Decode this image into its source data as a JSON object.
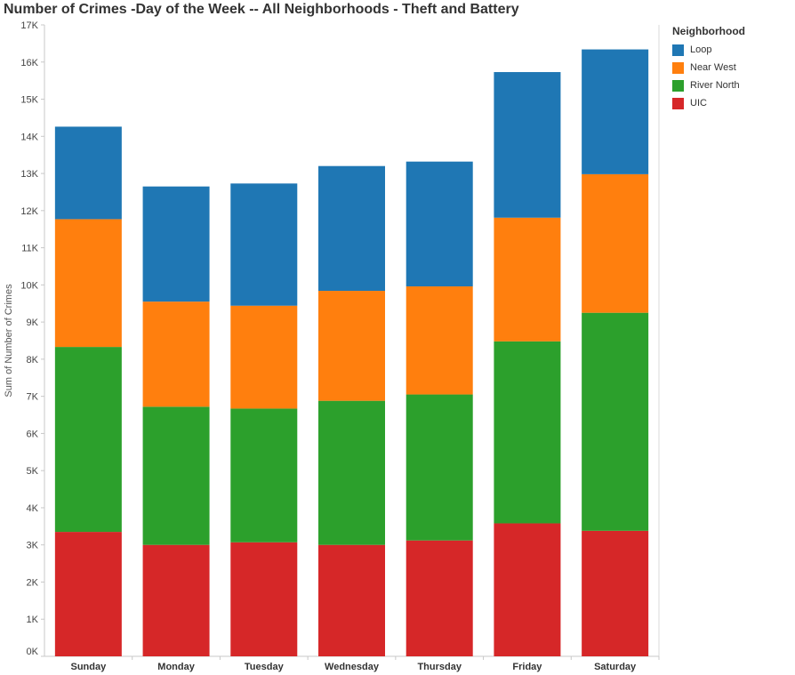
{
  "chart_data": {
    "type": "bar",
    "stacked": true,
    "title": "Number of Crimes -Day of the Week -- All Neighborhoods - Theft and Battery",
    "xlabel": "",
    "ylabel": "Sum of Number of Crimes",
    "ylim": [
      0,
      17000
    ],
    "ytick_labels": [
      "0K",
      "1K",
      "2K",
      "3K",
      "4K",
      "5K",
      "6K",
      "7K",
      "8K",
      "9K",
      "10K",
      "11K",
      "12K",
      "13K",
      "14K",
      "15K",
      "16K",
      "17K"
    ],
    "categories": [
      "Sunday",
      "Monday",
      "Tuesday",
      "Wednesday",
      "Thursday",
      "Friday",
      "Saturday"
    ],
    "series": [
      {
        "name": "UIC",
        "color": "#d62728",
        "values": [
          3350,
          3000,
          3070,
          3000,
          3120,
          3580,
          3380
        ]
      },
      {
        "name": "River North",
        "color": "#2ca02c",
        "values": [
          4980,
          3720,
          3600,
          3880,
          3930,
          4900,
          5870
        ]
      },
      {
        "name": "Near West",
        "color": "#ff7f0e",
        "values": [
          3440,
          2830,
          2770,
          2960,
          2910,
          3330,
          3730
        ]
      },
      {
        "name": "Loop",
        "color": "#1f77b4",
        "values": [
          2490,
          3100,
          3290,
          3360,
          3360,
          3920,
          3360
        ]
      }
    ],
    "legend": {
      "title": "Neighborhood",
      "placement": "top-right",
      "order": [
        "Loop",
        "Near West",
        "River North",
        "UIC"
      ]
    },
    "grid": false
  }
}
